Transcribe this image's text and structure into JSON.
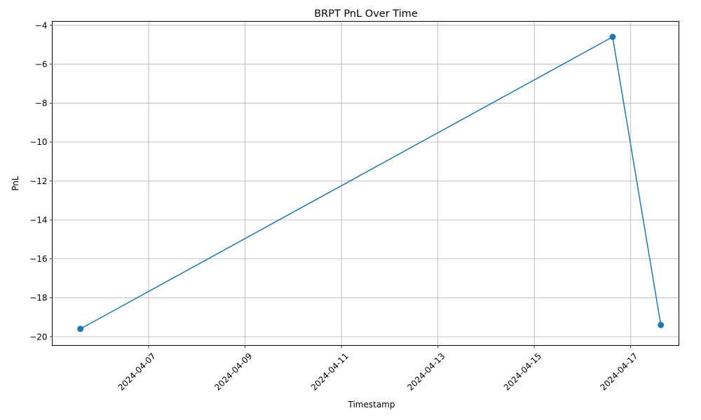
{
  "chart_data": {
    "type": "line",
    "title": "BRPT PnL Over Time",
    "xlabel": "Timestamp",
    "ylabel": "PnL",
    "x_type": "datetime",
    "xlim": [
      "2024-04-05T00:00:00",
      "2024-04-18T00:00:00"
    ],
    "ylim": [
      -20.45,
      -3.8
    ],
    "x_ticks": [
      "2024-04-07",
      "2024-04-09",
      "2024-04-11",
      "2024-04-13",
      "2024-04-15",
      "2024-04-17"
    ],
    "y_ticks": [
      -20,
      -18,
      -16,
      -14,
      -12,
      -10,
      -8,
      -6,
      -4
    ],
    "y_tick_labels": [
      "−20",
      "−18",
      "−16",
      "−14",
      "−12",
      "−10",
      "−8",
      "−6",
      "−4"
    ],
    "grid": true,
    "series": [
      {
        "color": "#1f77b4",
        "marker": "circle",
        "x": [
          "2024-04-05T14:00:00",
          "2024-04-16T15:00:00",
          "2024-04-17T15:00:00"
        ],
        "y": [
          -19.6,
          -4.6,
          -19.4
        ]
      }
    ]
  }
}
